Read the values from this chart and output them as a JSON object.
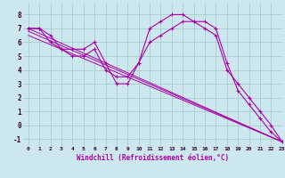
{
  "background_color": "#cce8ee",
  "grid_color": "#aacccc",
  "line_color": "#aa00aa",
  "xlabel": "Windchill (Refroidissement éolien,°C)",
  "xlim": [
    -0.5,
    23
  ],
  "ylim": [
    -1.5,
    8.8
  ],
  "xtick_labels": [
    "0",
    "1",
    "2",
    "3",
    "4",
    "5",
    "6",
    "7",
    "8",
    "9",
    "10",
    "11",
    "12",
    "13",
    "14",
    "15",
    "16",
    "17",
    "18",
    "19",
    "20",
    "21",
    "22",
    "23"
  ],
  "xtick_vals": [
    0,
    1,
    2,
    3,
    4,
    5,
    6,
    7,
    8,
    9,
    10,
    11,
    12,
    13,
    14,
    15,
    16,
    17,
    18,
    19,
    20,
    21,
    22,
    23
  ],
  "yticks": [
    -1,
    0,
    1,
    2,
    3,
    4,
    5,
    6,
    7,
    8
  ],
  "series_curves": [
    {
      "x": [
        0,
        1,
        2,
        3,
        4,
        5,
        6,
        7,
        8,
        9,
        10,
        11,
        12,
        13,
        14,
        15,
        16,
        17,
        18,
        19,
        20,
        21,
        22,
        23
      ],
      "y": [
        7.0,
        7.0,
        6.5,
        5.5,
        5.5,
        5.5,
        6.0,
        4.5,
        3.0,
        3.0,
        4.5,
        7.0,
        7.5,
        8.0,
        8.0,
        7.5,
        7.5,
        7.0,
        4.5,
        2.5,
        1.5,
        0.5,
        -0.5,
        -1.2
      ]
    },
    {
      "x": [
        0,
        1,
        2,
        3,
        4,
        5,
        6,
        7,
        8,
        9,
        10,
        11,
        12,
        13,
        14,
        15,
        16,
        17,
        18,
        19,
        20,
        21,
        22,
        23
      ],
      "y": [
        7.0,
        7.0,
        6.0,
        5.5,
        5.0,
        5.0,
        5.5,
        4.0,
        3.5,
        3.5,
        4.5,
        6.0,
        6.5,
        7.0,
        7.5,
        7.5,
        7.0,
        6.5,
        4.0,
        3.0,
        2.0,
        1.0,
        0.0,
        -1.2
      ]
    }
  ],
  "series_lines": [
    {
      "x": [
        0,
        23
      ],
      "y": [
        7.0,
        -1.2
      ]
    },
    {
      "x": [
        0,
        23
      ],
      "y": [
        6.8,
        -1.2
      ]
    },
    {
      "x": [
        0,
        23
      ],
      "y": [
        6.5,
        -1.2
      ]
    }
  ]
}
